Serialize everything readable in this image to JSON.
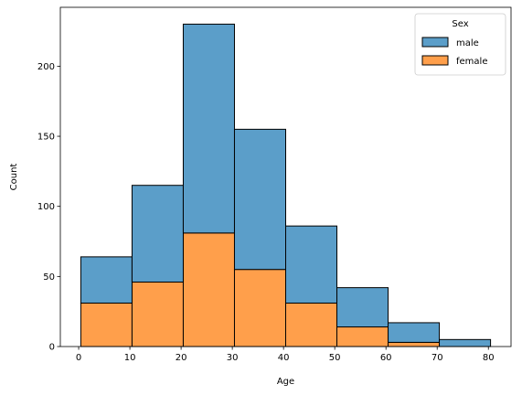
{
  "chart_data": {
    "type": "bar",
    "stacked": true,
    "title": "",
    "xlabel": "Age",
    "ylabel": "Count",
    "bins": [
      [
        0.42,
        10.42
      ],
      [
        10.42,
        20.42
      ],
      [
        20.42,
        30.42
      ],
      [
        30.42,
        40.42
      ],
      [
        40.42,
        50.42
      ],
      [
        50.42,
        60.42
      ],
      [
        60.42,
        70.42
      ],
      [
        70.42,
        80.42
      ]
    ],
    "series": [
      {
        "name": "female",
        "values": [
          31,
          46,
          81,
          55,
          31,
          14,
          3,
          0
        ],
        "color": "#ff9f4b"
      },
      {
        "name": "male",
        "values": [
          33,
          69,
          149,
          100,
          55,
          28,
          14,
          5
        ],
        "color": "#5b9ec9"
      }
    ],
    "xlim": [
      -3.58,
      84.42
    ],
    "ylim": [
      0,
      242
    ],
    "xticks": [
      0,
      10,
      20,
      30,
      40,
      50,
      60,
      70,
      80
    ],
    "yticks": [
      0,
      50,
      100,
      150,
      200
    ],
    "legend": {
      "title": "Sex",
      "placement": "top-right",
      "entries": [
        {
          "label": "male",
          "color": "#5b9ec9"
        },
        {
          "label": "female",
          "color": "#ff9f4b"
        }
      ]
    },
    "grid": false
  }
}
